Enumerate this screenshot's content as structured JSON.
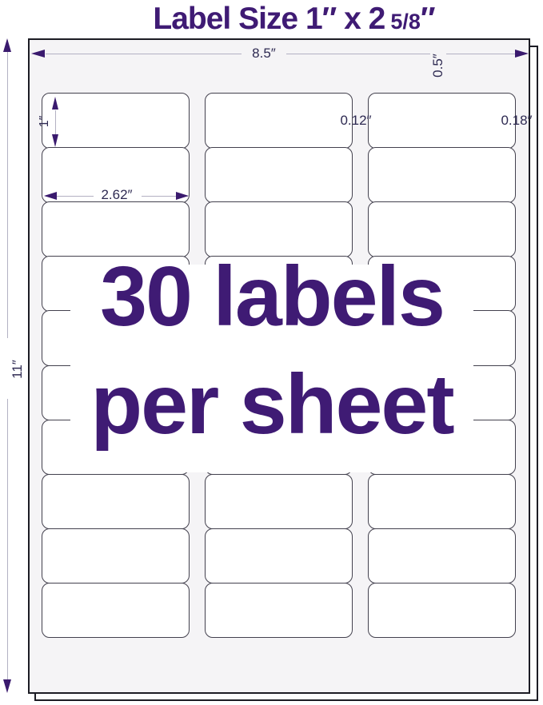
{
  "title": {
    "main": "Label Size 1″ x 2",
    "fraction": "5/8",
    "inch_mark": "″"
  },
  "dimensions": {
    "sheet_width": "8.5″",
    "top_margin": "0.5″",
    "sheet_height": "11″",
    "label_height": "1″",
    "label_width": "2.62″",
    "column_gap": "0.12″",
    "side_margin": "0.18″"
  },
  "overlay": {
    "line1": "30 labels",
    "line2": "per sheet"
  },
  "grid": {
    "rows": 10,
    "columns": 3,
    "labels_total": 30
  },
  "colors": {
    "accent_purple": "#3f1b74",
    "arrow_purple": "#3a1a6e",
    "dimension_text": "#2e2a52",
    "dimension_line": "#b3b1c3",
    "sheet_fill": "#f5f4f6",
    "sheet_border": "#1c1c24",
    "label_border": "#43414e",
    "label_fill": "#ffffff"
  }
}
